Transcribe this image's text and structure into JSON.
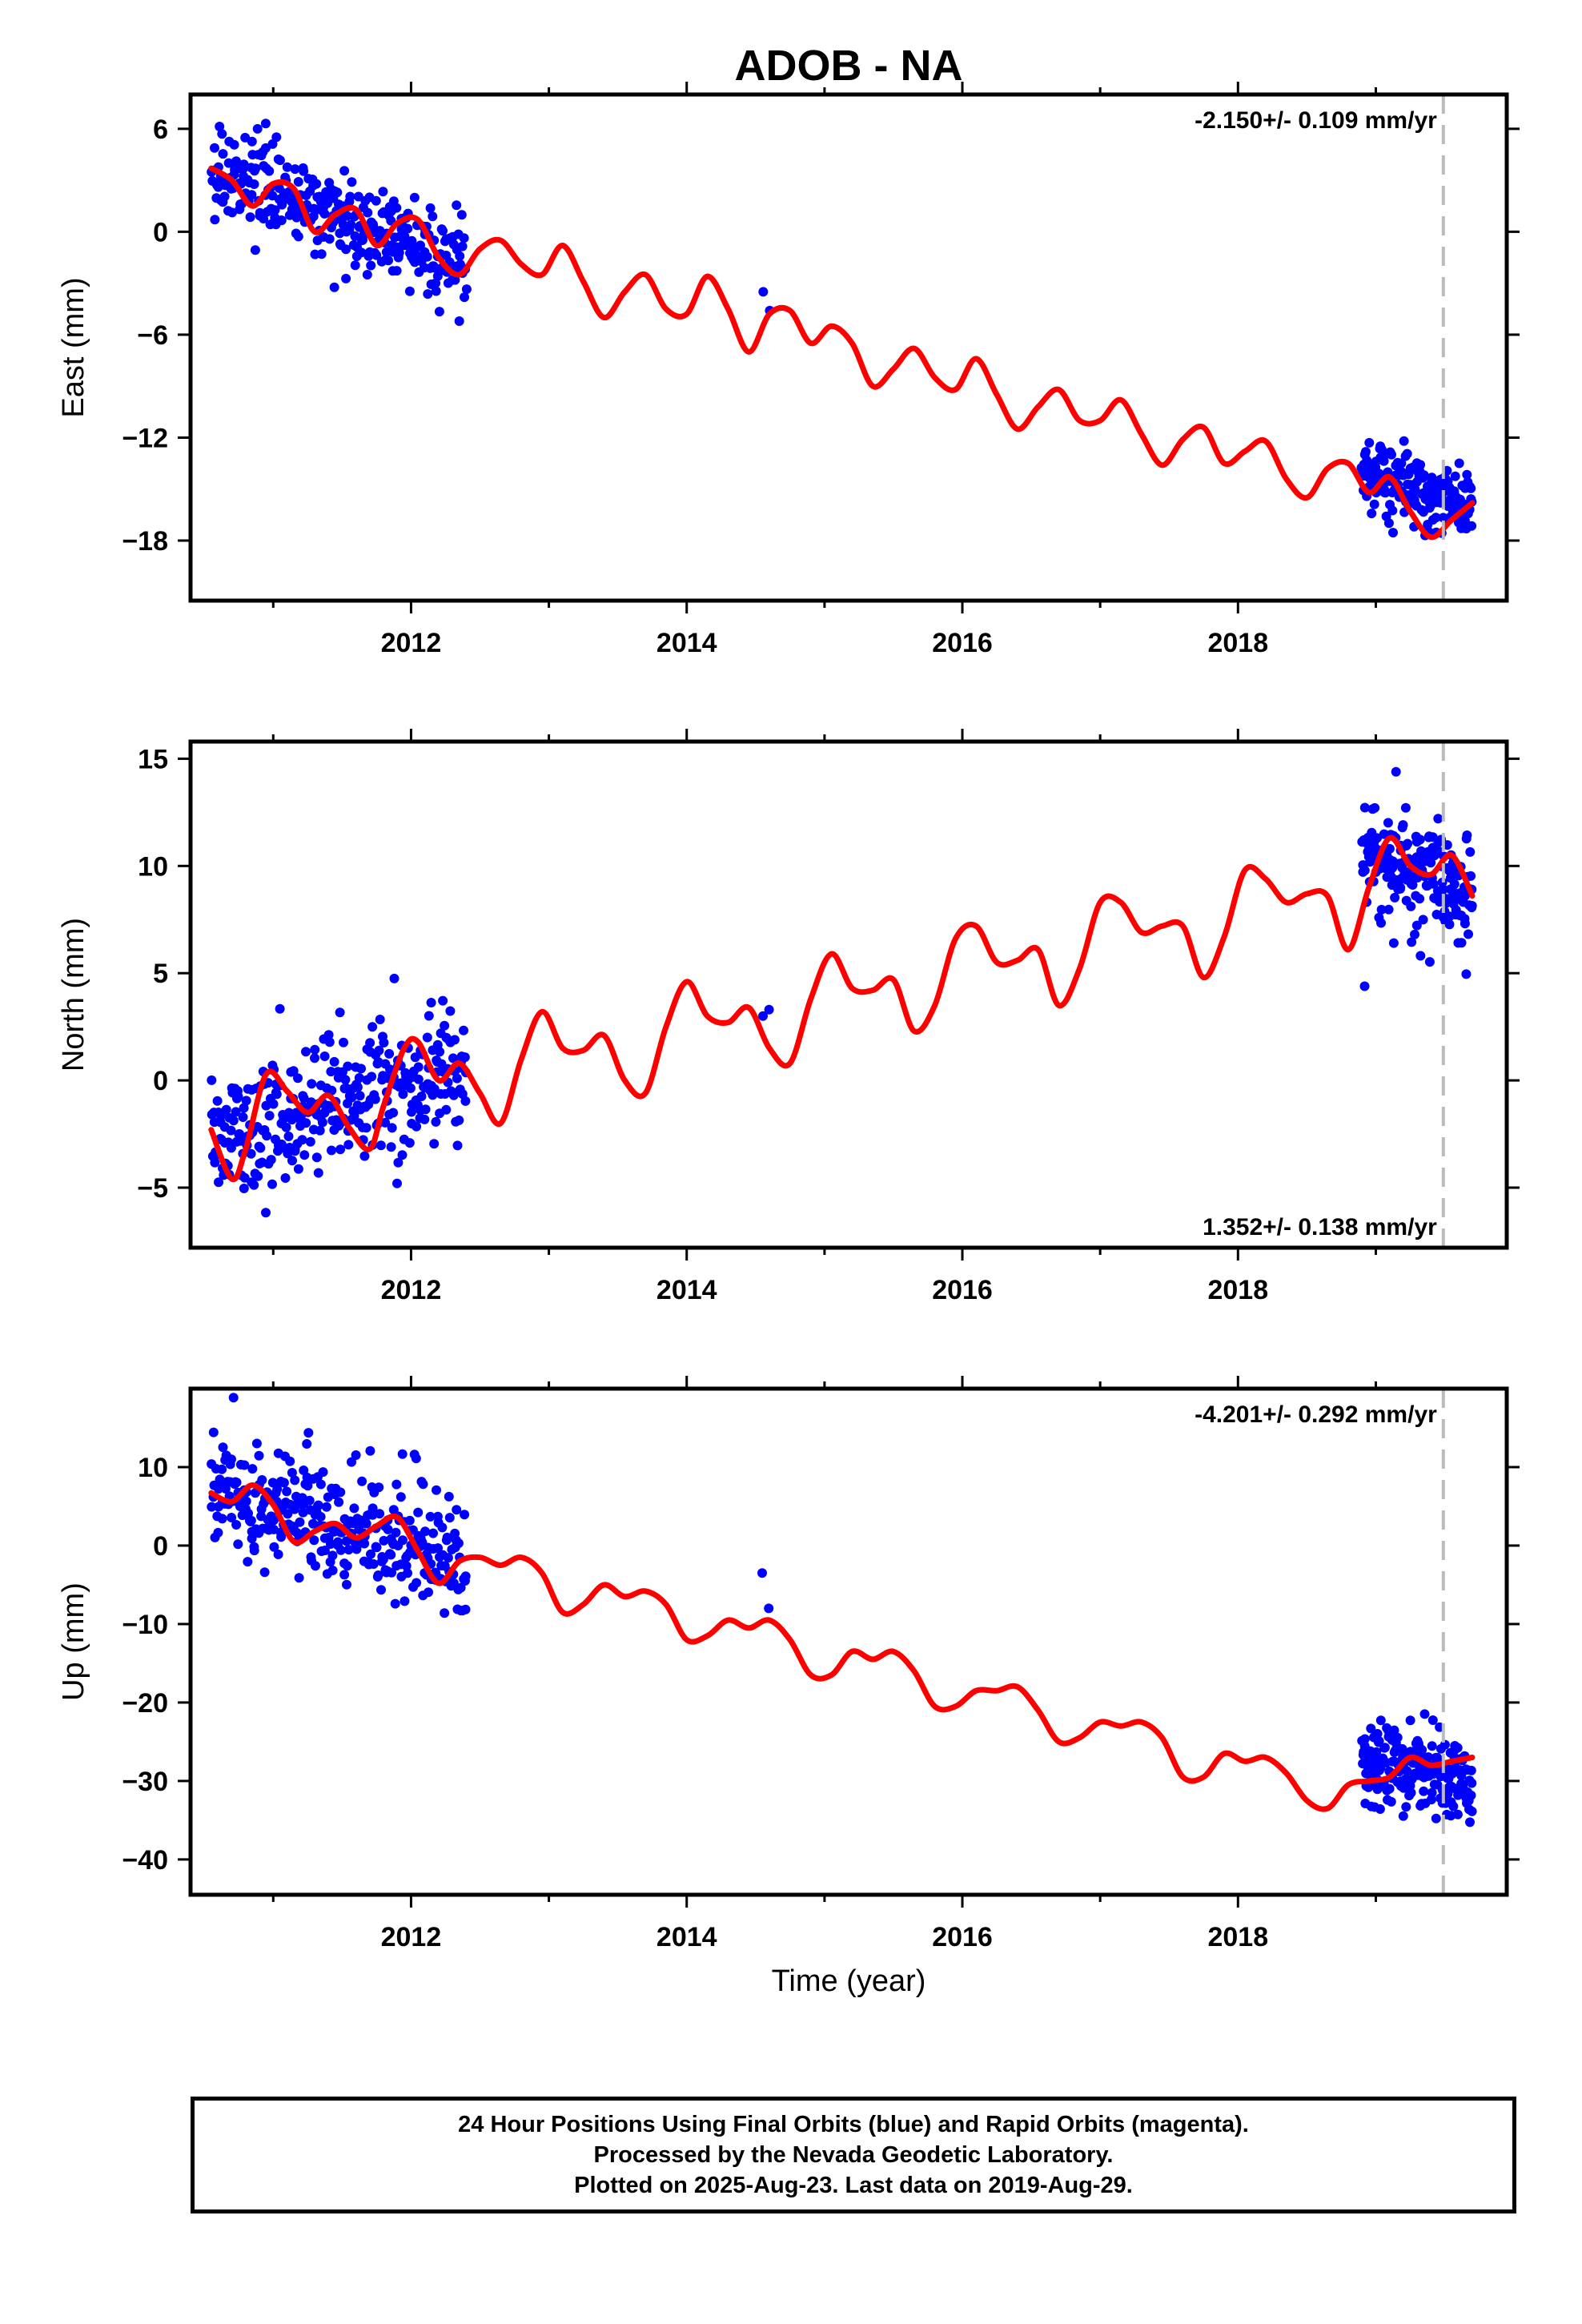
{
  "title": "ADOB - NA",
  "xlabel": "Time (year)",
  "footer": {
    "line1": "24 Hour Positions Using Final Orbits (blue) and Rapid Orbits (magenta).",
    "line2": "Processed by the Nevada Geodetic Laboratory.",
    "line3": "Plotted on 2025-Aug-23. Last data on 2019-Aug-29."
  },
  "colors": {
    "final_orbit_points": "#0000ff",
    "model_fit": "#ff0000",
    "last_data_marker": "#bbbbbb",
    "axes": "#000000"
  },
  "chart_data": [
    {
      "type": "scatter",
      "component": "East",
      "ylabel": "East (mm)",
      "rate_text": "-2.150+/- 0.109 mm/yr",
      "rate_position": "top-right",
      "xlim": [
        2010.4,
        2019.95
      ],
      "ylim": [
        -21.5,
        8.0
      ],
      "xticks": [
        2012,
        2014,
        2016,
        2018
      ],
      "yticks": [
        6,
        0,
        -6,
        -12,
        -18
      ],
      "grid": false,
      "last_data_year": 2019.49,
      "fit": {
        "name": "model fit",
        "x": [
          2010.55,
          2010.7,
          2010.85,
          2011.0,
          2011.15,
          2011.3,
          2011.45,
          2011.6,
          2011.75,
          2011.9,
          2012.05,
          2012.2,
          2012.35,
          2012.5,
          2012.65,
          2012.8,
          2012.95,
          2013.1,
          2013.25,
          2013.4,
          2013.55,
          2013.7,
          2013.85,
          2014.0,
          2014.15,
          2014.3,
          2014.45,
          2014.6,
          2014.75,
          2014.9,
          2015.05,
          2015.2,
          2015.35,
          2015.5,
          2015.65,
          2015.8,
          2015.95,
          2016.1,
          2016.25,
          2016.4,
          2016.55,
          2016.7,
          2016.85,
          2017.0,
          2017.15,
          2017.3,
          2017.45,
          2017.6,
          2017.75,
          2017.9,
          2018.05,
          2018.2,
          2018.35,
          2018.5,
          2018.65,
          2018.8,
          2018.95,
          2019.1,
          2019.25,
          2019.4,
          2019.55,
          2019.7
        ],
        "y": [
          3.7,
          3.0,
          1.5,
          2.8,
          2.5,
          0.0,
          1.0,
          1.3,
          -0.8,
          0.5,
          0.7,
          -1.5,
          -2.5,
          -1.0,
          -0.5,
          -1.9,
          -2.5,
          -0.8,
          -2.9,
          -5.0,
          -3.5,
          -2.5,
          -4.5,
          -4.8,
          -2.6,
          -4.5,
          -7.0,
          -4.8,
          -4.6,
          -6.5,
          -5.5,
          -6.5,
          -9.0,
          -8.0,
          -6.8,
          -8.5,
          -9.2,
          -7.4,
          -9.5,
          -11.5,
          -10.2,
          -9.2,
          -11.0,
          -11.0,
          -9.8,
          -11.8,
          -13.6,
          -12.1,
          -11.4,
          -13.5,
          -12.8,
          -12.2,
          -14.4,
          -15.5,
          -13.8,
          -13.5,
          -15.2,
          -14.3,
          -16.3,
          -17.8,
          -16.8,
          -15.8
        ]
      },
      "observations": {
        "name": "final orbits",
        "segments": [
          {
            "x_start": 2010.55,
            "x_end": 2012.4,
            "trend_start": 3.5,
            "trend_end": -2.0,
            "spread": 2.2,
            "count": 330
          },
          {
            "x_start": 2014.55,
            "x_end": 2014.6,
            "trend_start": -3.5,
            "trend_end": -4.6,
            "spread": 0.3,
            "count": 2
          },
          {
            "x_start": 2018.9,
            "x_end": 2019.7,
            "trend_start": -14.0,
            "trend_end": -16.2,
            "spread": 1.8,
            "count": 200
          }
        ]
      }
    },
    {
      "type": "scatter",
      "component": "North",
      "ylabel": "North (mm)",
      "rate_text": "1.352+/- 0.138 mm/yr",
      "rate_position": "bottom-right",
      "xlim": [
        2010.4,
        2019.95
      ],
      "ylim": [
        -7.8,
        15.8
      ],
      "xticks": [
        2012,
        2014,
        2016,
        2018
      ],
      "yticks": [
        15,
        10,
        5,
        0,
        -5
      ],
      "grid": false,
      "last_data_year": 2019.49,
      "fit": {
        "name": "model fit",
        "x": [
          2010.55,
          2010.7,
          2010.8,
          2010.95,
          2011.1,
          2011.25,
          2011.4,
          2011.55,
          2011.7,
          2011.8,
          2011.95,
          2012.05,
          2012.2,
          2012.35,
          2012.5,
          2012.65,
          2012.8,
          2012.95,
          2013.1,
          2013.25,
          2013.4,
          2013.55,
          2013.7,
          2013.85,
          2014.0,
          2014.15,
          2014.3,
          2014.45,
          2014.6,
          2014.75,
          2014.9,
          2015.05,
          2015.2,
          2015.35,
          2015.5,
          2015.65,
          2015.8,
          2015.95,
          2016.1,
          2016.25,
          2016.4,
          2016.55,
          2016.7,
          2016.85,
          2017.0,
          2017.15,
          2017.3,
          2017.45,
          2017.6,
          2017.75,
          2017.9,
          2018.05,
          2018.2,
          2018.35,
          2018.5,
          2018.65,
          2018.8,
          2018.95,
          2019.1,
          2019.25,
          2019.4,
          2019.55,
          2019.7
        ],
        "y": [
          -2.3,
          -4.6,
          -3.2,
          0.3,
          -0.5,
          -1.5,
          -0.7,
          -2.2,
          -3.2,
          -1.2,
          1.5,
          1.8,
          0.0,
          0.8,
          -0.6,
          -2.0,
          1.0,
          3.2,
          1.5,
          1.4,
          2.1,
          0.0,
          -0.6,
          2.5,
          4.6,
          3.0,
          2.7,
          3.4,
          1.5,
          0.8,
          3.8,
          5.9,
          4.3,
          4.2,
          4.7,
          2.3,
          3.5,
          6.6,
          7.2,
          5.5,
          5.6,
          6.1,
          3.5,
          5.2,
          8.3,
          8.3,
          6.9,
          7.2,
          7.2,
          4.8,
          6.7,
          9.8,
          9.4,
          8.3,
          8.7,
          8.6,
          6.1,
          9.0,
          11.3,
          10.0,
          9.6,
          10.5,
          8.6
        ]
      },
      "observations": {
        "name": "final orbits",
        "segments": [
          {
            "x_start": 2010.55,
            "x_end": 2012.4,
            "trend_start": -2.5,
            "trend_end": 0.5,
            "spread": 2.8,
            "count": 330
          },
          {
            "x_start": 2014.55,
            "x_end": 2014.6,
            "trend_start": 3.0,
            "trend_end": 3.3,
            "spread": 0.2,
            "count": 2
          },
          {
            "x_start": 2018.9,
            "x_end": 2019.7,
            "trend_start": 10.5,
            "trend_end": 9.0,
            "spread": 2.2,
            "count": 200
          }
        ]
      }
    },
    {
      "type": "scatter",
      "component": "Up",
      "ylabel": "Up (mm)",
      "rate_text": "-4.201+/- 0.292 mm/yr",
      "rate_position": "top-right",
      "xlim": [
        2010.4,
        2019.95
      ],
      "ylim": [
        -44.5,
        20.0
      ],
      "xticks": [
        2012,
        2014,
        2016,
        2018
      ],
      "yticks": [
        10,
        0,
        -10,
        -20,
        -30,
        -40
      ],
      "grid": false,
      "last_data_year": 2019.49,
      "fit": {
        "name": "model fit",
        "x": [
          2010.55,
          2010.7,
          2010.85,
          2011.0,
          2011.15,
          2011.3,
          2011.45,
          2011.6,
          2011.75,
          2011.9,
          2012.05,
          2012.2,
          2012.35,
          2012.5,
          2012.65,
          2012.8,
          2012.95,
          2013.1,
          2013.25,
          2013.4,
          2013.55,
          2013.7,
          2013.85,
          2014.0,
          2014.15,
          2014.3,
          2014.45,
          2014.6,
          2014.75,
          2014.9,
          2015.05,
          2015.2,
          2015.35,
          2015.5,
          2015.65,
          2015.8,
          2015.95,
          2016.1,
          2016.25,
          2016.4,
          2016.55,
          2016.7,
          2016.85,
          2017.0,
          2017.15,
          2017.3,
          2017.45,
          2017.6,
          2017.75,
          2017.9,
          2018.05,
          2018.2,
          2018.35,
          2018.5,
          2018.65,
          2018.8,
          2018.95,
          2019.1,
          2019.25,
          2019.4,
          2019.55,
          2019.7
        ],
        "y": [
          6.7,
          5.6,
          7.7,
          5.2,
          0.5,
          1.8,
          2.8,
          1.0,
          2.5,
          3.6,
          -0.7,
          -4.8,
          -2.0,
          -1.5,
          -2.5,
          -1.5,
          -3.5,
          -8.5,
          -7.5,
          -5.0,
          -6.5,
          -5.8,
          -7.5,
          -12.0,
          -11.5,
          -9.5,
          -10.5,
          -9.5,
          -12.0,
          -16.5,
          -16.5,
          -13.5,
          -14.5,
          -13.5,
          -16.0,
          -20.5,
          -20.5,
          -18.5,
          -18.5,
          -18.0,
          -21.0,
          -25.0,
          -24.5,
          -22.5,
          -23.0,
          -22.5,
          -24.5,
          -29.5,
          -29.5,
          -26.5,
          -27.5,
          -27.0,
          -29.0,
          -32.5,
          -33.5,
          -30.5,
          -30.0,
          -29.5,
          -27.0,
          -28.0,
          -27.5,
          -27.0
        ]
      },
      "observations": {
        "name": "final orbits",
        "segments": [
          {
            "x_start": 2010.55,
            "x_end": 2012.4,
            "trend_start": 7.0,
            "trend_end": -1.5,
            "spread": 6.5,
            "count": 330
          },
          {
            "x_start": 2014.55,
            "x_end": 2014.6,
            "trend_start": -3.5,
            "trend_end": -8.0,
            "spread": 0.3,
            "count": 2
          },
          {
            "x_start": 2018.9,
            "x_end": 2019.7,
            "trend_start": -28.0,
            "trend_end": -30.0,
            "spread": 5.0,
            "count": 200
          }
        ]
      }
    }
  ]
}
